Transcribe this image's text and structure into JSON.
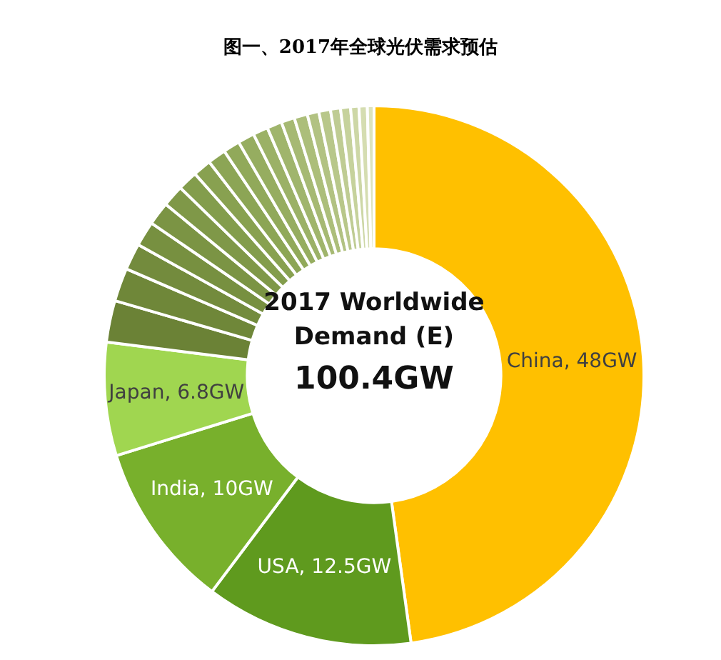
{
  "chart_data": {
    "type": "donut",
    "title": "图一、2017年全球光伏需求预估",
    "annotations": [
      "2017 Worldwide Demand (E)",
      "100.4GW"
    ],
    "categories": [
      "China",
      "USA",
      "India",
      "Japan",
      null,
      null,
      null,
      null,
      null,
      null,
      null,
      null,
      null,
      null,
      null,
      null,
      null,
      null,
      null,
      null,
      null,
      null,
      null,
      null,
      null,
      null
    ],
    "values": [
      48,
      12.5,
      10,
      6.8,
      2.5,
      2.0,
      1.6,
      1.5,
      1.4,
      1.3,
      1.2,
      1.1,
      1.1,
      1.0,
      1.0,
      0.9,
      0.9,
      0.8,
      0.8,
      0.7,
      0.7,
      0.6,
      0.6,
      0.5,
      0.5,
      0.4
    ],
    "value_labels": [
      "48GW",
      "12.5GW",
      "10GW",
      "6.8GW",
      null,
      null,
      null,
      null,
      null,
      null,
      null,
      null,
      null,
      null,
      null,
      null,
      null,
      null,
      null,
      null,
      null,
      null,
      null,
      null,
      null,
      null
    ],
    "colors": [
      "#ffc000",
      "#5f9a1e",
      "#78b02c",
      "#a0d650",
      "#6b8236",
      "#6f8739",
      "#738b3d",
      "#779040",
      "#7b9444",
      "#7f9848",
      "#839d4c",
      "#88a150",
      "#8ca555",
      "#91a95a",
      "#96ad60",
      "#9bb166",
      "#a0b56c",
      "#a6b973",
      "#acbe7a",
      "#b2c282",
      "#b8c78a",
      "#bfcc93",
      "#c6d29c",
      "#cdd7a6",
      "#d5ddb1",
      "#dde4bd"
    ],
    "legend": false
  }
}
